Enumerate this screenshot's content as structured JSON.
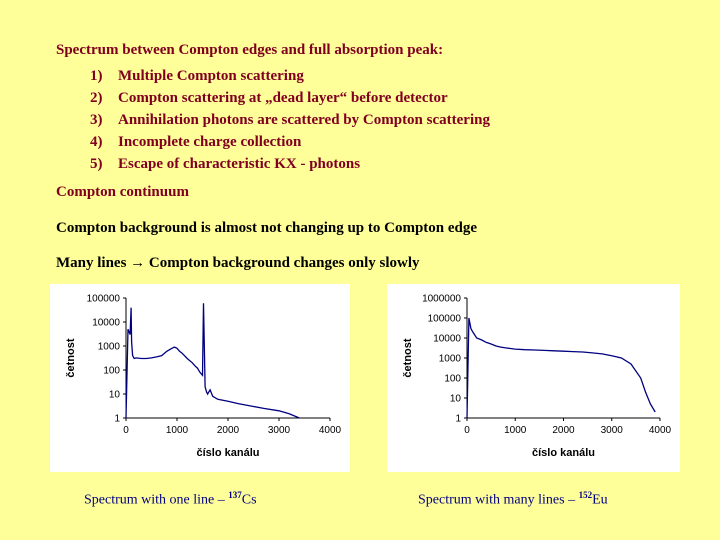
{
  "intro": {
    "heading": "Spectrum between Compton edges and full absorption peak:",
    "items": [
      {
        "num": "1)",
        "text": "Multiple Compton scattering"
      },
      {
        "num": "2)",
        "text": "Compton scattering at „dead layer“ before detector"
      },
      {
        "num": "3)",
        "text": "Annihilation photons are scattered by Compton scattering"
      },
      {
        "num": "4)",
        "text": "Incomplete charge collection"
      },
      {
        "num": "5)",
        "text": "Escape of characteristic KX - photons"
      }
    ]
  },
  "sections": {
    "continuum": "Compton continuum",
    "background": "Compton background is almost not changing up to Compton edge",
    "many_lines": "Many lines → Compton background changes only slowly"
  },
  "captions": {
    "left_prefix": "Spectrum with one line – ",
    "left_mass": "137",
    "left_element": "Cs",
    "right_prefix": "Spectrum with many lines – ",
    "right_mass": "152",
    "right_element": "Eu"
  },
  "colors": {
    "background": "#ffff99",
    "heading": "#800020",
    "caption": "#000080",
    "series": "#000080"
  },
  "chart_data": [
    {
      "type": "line",
      "xlabel": "číslo kanálu",
      "ylabel": "četnost",
      "xticks": [
        0,
        1000,
        2000,
        3000,
        4000
      ],
      "yticks": [
        "1",
        "10",
        "100",
        "1000",
        "10000",
        "100000"
      ],
      "xlim": [
        0,
        4000
      ],
      "ylim": [
        1,
        100000
      ],
      "yscale": "log",
      "series": [
        {
          "x": [
            0,
            40,
            80,
            100,
            110,
            130,
            160,
            200,
            300,
            400,
            500,
            600,
            700,
            800,
            900,
            950,
            1000,
            1050,
            1100,
            1200,
            1300,
            1350,
            1400,
            1450,
            1500,
            1520,
            1550,
            1580,
            1600,
            1650,
            1700,
            1800,
            2000,
            2200,
            2500,
            2700,
            3000,
            3200,
            3400
          ],
          "y": [
            1,
            5000,
            3000,
            40000,
            1500,
            400,
            300,
            320,
            300,
            300,
            320,
            350,
            400,
            600,
            800,
            900,
            800,
            600,
            500,
            300,
            200,
            150,
            120,
            80,
            60,
            60000,
            20,
            12,
            10,
            15,
            8,
            6,
            5,
            4,
            3,
            2.5,
            2,
            1.5,
            1
          ]
        }
      ]
    },
    {
      "type": "line",
      "xlabel": "číslo kanálu",
      "ylabel": "četnost",
      "xticks": [
        0,
        1000,
        2000,
        3000,
        4000
      ],
      "yticks": [
        "1",
        "10",
        "100",
        "1000",
        "10000",
        "100000",
        "1000000"
      ],
      "xlim": [
        0,
        4000
      ],
      "ylim": [
        1,
        1000000
      ],
      "yscale": "log",
      "series": [
        {
          "x": [
            0,
            40,
            80,
            120,
            200,
            300,
            400,
            500,
            600,
            700,
            800,
            900,
            1000,
            1200,
            1400,
            1600,
            1800,
            2000,
            2200,
            2400,
            2600,
            2800,
            3000,
            3200,
            3400,
            3600,
            3700,
            3800,
            3900
          ],
          "y": [
            1,
            100000,
            30000,
            20000,
            10000,
            8000,
            6000,
            5000,
            4000,
            3500,
            3200,
            3000,
            2800,
            2600,
            2500,
            2400,
            2300,
            2200,
            2100,
            2000,
            1800,
            1600,
            1300,
            1000,
            500,
            100,
            20,
            5,
            2
          ]
        }
      ]
    }
  ]
}
